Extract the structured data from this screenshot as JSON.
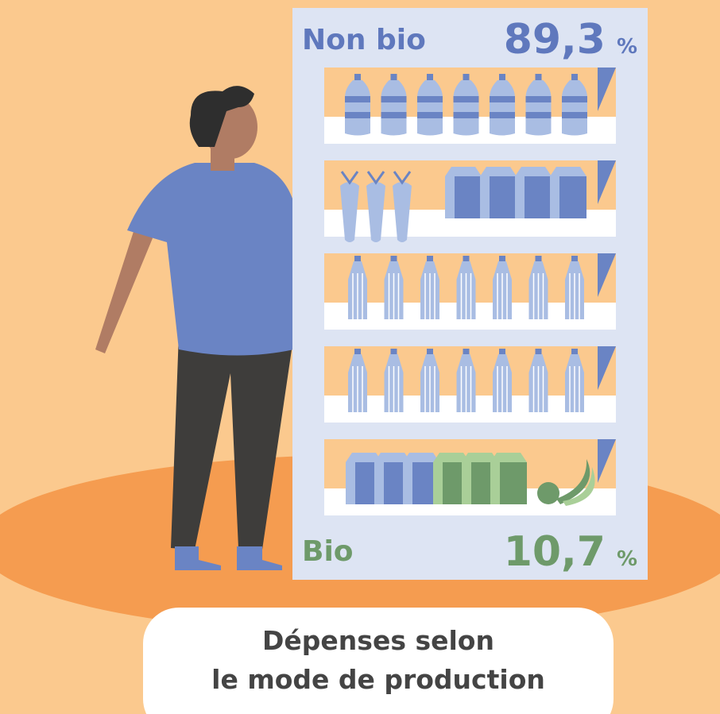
{
  "shares": [
    {
      "label": "Non bio",
      "value": "89,3",
      "unit": "%"
    },
    {
      "label": "Bio",
      "value": "10,7",
      "unit": "%"
    }
  ],
  "caption": [
    "Dépenses selon",
    "le mode de production"
  ]
}
